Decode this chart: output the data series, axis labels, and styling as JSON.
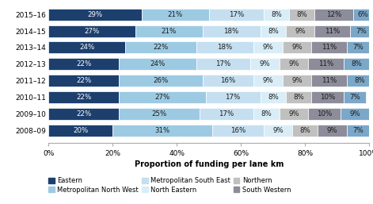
{
  "years": [
    "2008–09",
    "2009–10",
    "2010–11",
    "2011–12",
    "2012–13",
    "2013–14",
    "2014–15",
    "2015–16"
  ],
  "segments": {
    "Eastern": [
      20,
      22,
      22,
      22,
      22,
      24,
      27,
      29
    ],
    "Metropolitan North West": [
      31,
      25,
      27,
      26,
      24,
      22,
      21,
      21
    ],
    "Metropolitan South East": [
      16,
      17,
      17,
      16,
      17,
      18,
      18,
      17
    ],
    "North Eastern": [
      9,
      8,
      8,
      9,
      9,
      9,
      8,
      8
    ],
    "Northern": [
      8,
      9,
      8,
      9,
      9,
      9,
      9,
      8
    ],
    "South Western": [
      9,
      10,
      10,
      11,
      11,
      11,
      11,
      12
    ],
    "Last": [
      7,
      9,
      7,
      8,
      8,
      7,
      7,
      6
    ]
  },
  "colors": {
    "Eastern": "#1c3f6e",
    "Metropolitan North West": "#9dcae3",
    "Metropolitan South East": "#c5dff0",
    "North Eastern": "#d9edf7",
    "Northern": "#c0c0c0",
    "South Western": "#8c8c9a",
    "Last": "#7ba7c9"
  },
  "xlabel": "Proportion of funding per lane km",
  "xlabel_fontsize": 7,
  "tick_fontsize": 6.5,
  "label_fontsize": 6.2,
  "bar_height": 0.72,
  "legend_items": [
    {
      "label": "Eastern",
      "color": "#1c3f6e"
    },
    {
      "label": "Metropolitan North West",
      "color": "#9dcae3"
    },
    {
      "label": "Metropolitan South East",
      "color": "#c5dff0"
    },
    {
      "label": "North Eastern",
      "color": "#d9edf7"
    },
    {
      "label": "Northern",
      "color": "#c0c0c0"
    },
    {
      "label": "South Western",
      "color": "#8c8c9a"
    }
  ]
}
